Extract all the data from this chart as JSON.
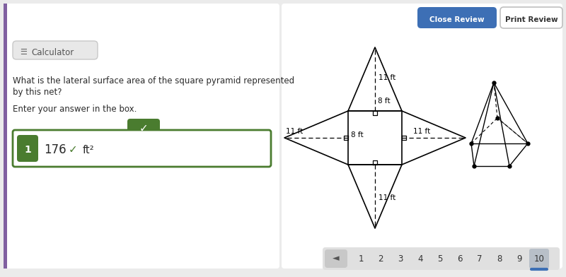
{
  "bg_color": "#ebebeb",
  "white_bg": "#ffffff",
  "purple_bar_color": "#8060a0",
  "green_color": "#4a7c2f",
  "blue_btn_color": "#3d6fb5",
  "text_color": "#2a2a2a",
  "gray_btn_bg": "#e4e4e4",
  "question_line1": "What is the lateral surface area of the square pyramid represented",
  "question_line2": "by this net?",
  "enter_text": "Enter your answer in the box.",
  "calculator_label": "Calculator",
  "answer_value": "176",
  "answer_unit": "ft²",
  "close_review": "Close Review",
  "print_review": "Print Review",
  "page_numbers": [
    "1",
    "2",
    "3",
    "4",
    "5",
    "6",
    "7",
    "8",
    "9",
    "10"
  ],
  "current_page": "10",
  "dim_slant": "11 ft",
  "dim_side": "8 ft"
}
